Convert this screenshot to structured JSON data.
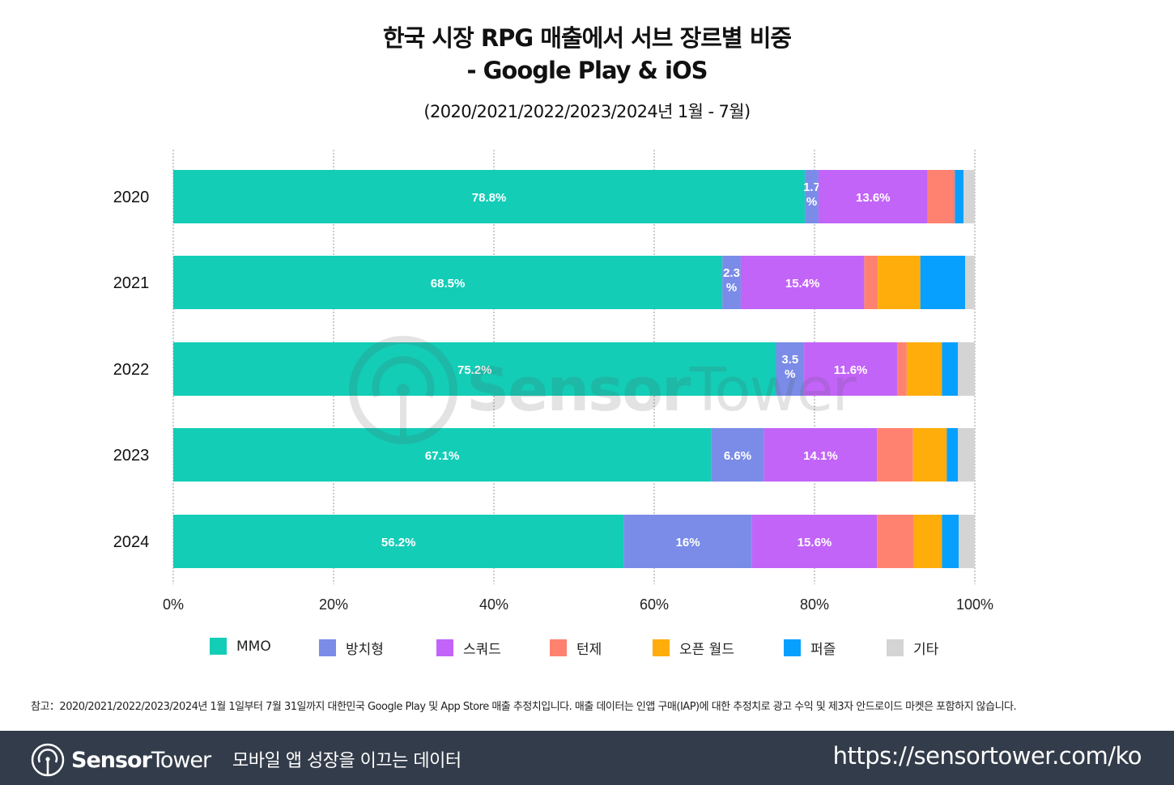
{
  "title": {
    "line1": "한국 시장 RPG 매출에서 서브 장르별 비중",
    "line2": "- Google Play & iOS",
    "subtitle": "(2020/2021/2022/2023/2024년 1월 - 7월)"
  },
  "chart_data": {
    "type": "bar",
    "orientation": "horizontal",
    "stacked": true,
    "title": "한국 시장 RPG 매출에서 서브 장르별 비중 - Google Play & iOS",
    "subtitle": "(2020/2021/2022/2023/2024년 1월 - 7월)",
    "xlabel": "",
    "ylabel": "",
    "xlim": [
      0,
      100
    ],
    "x_ticks": [
      "0%",
      "20%",
      "40%",
      "60%",
      "80%",
      "100%"
    ],
    "x_tick_values": [
      0,
      20,
      40,
      60,
      80,
      100
    ],
    "grid": true,
    "legend_position": "bottom",
    "categories": [
      "2020",
      "2021",
      "2022",
      "2023",
      "2024"
    ],
    "series": [
      {
        "name": "MMO",
        "color": "#13CDB7",
        "values": [
          78.8,
          68.5,
          75.2,
          67.1,
          56.2
        ],
        "labels": [
          "78.8%",
          "68.5%",
          "75.2%",
          "67.1%",
          "56.2%"
        ]
      },
      {
        "name": "방치형",
        "color": "#7A8CE8",
        "values": [
          1.7,
          2.3,
          3.5,
          6.6,
          16.0
        ],
        "labels": [
          "1.7\n%",
          "2.3\n%",
          "3.5\n%",
          "6.6%",
          "16%"
        ]
      },
      {
        "name": "스쿼드",
        "color": "#C264F8",
        "values": [
          13.6,
          15.4,
          11.6,
          14.1,
          15.6
        ],
        "labels": [
          "13.6%",
          "15.4%",
          "11.6%",
          "14.1%",
          "15.6%"
        ]
      },
      {
        "name": "턴제",
        "color": "#FF8270",
        "values": [
          3.4,
          1.7,
          1.2,
          4.5,
          4.6
        ],
        "labels": [
          "",
          "",
          "",
          "",
          ""
        ]
      },
      {
        "name": "오픈 월드",
        "color": "#FFAD0A",
        "values": [
          0.0,
          5.3,
          4.4,
          4.2,
          3.5
        ],
        "labels": [
          "",
          "",
          "",
          "",
          ""
        ]
      },
      {
        "name": "퍼즐",
        "color": "#07A0FF",
        "values": [
          1.1,
          5.6,
          2.0,
          1.4,
          2.1
        ],
        "labels": [
          "",
          "",
          "",
          "",
          ""
        ]
      },
      {
        "name": "기타",
        "color": "#D4D4D4",
        "values": [
          1.4,
          1.2,
          2.1,
          2.1,
          2.0
        ],
        "labels": [
          "",
          "",
          "",
          "",
          ""
        ]
      }
    ]
  },
  "note": "참고：2020/2021/2022/2023/2024년 1월 1일부터 7월 31일까지 대한민국 Google Play 및 App Store 매출 추정치입니다. 매출 데이터는 인앱 구매(IAP)에 대한 추정치로 광고 수익 및 제3자 안드로이드 마켓은 포함하지 않습니다.",
  "watermark": {
    "brand_bold": "Sensor",
    "brand_light": "Tower"
  },
  "footer": {
    "brand_bold": "Sensor",
    "brand_light": "Tower",
    "tagline": "모바일 앱 성장을 이끄는 데이터",
    "url": "https://sensortower.com/ko"
  }
}
